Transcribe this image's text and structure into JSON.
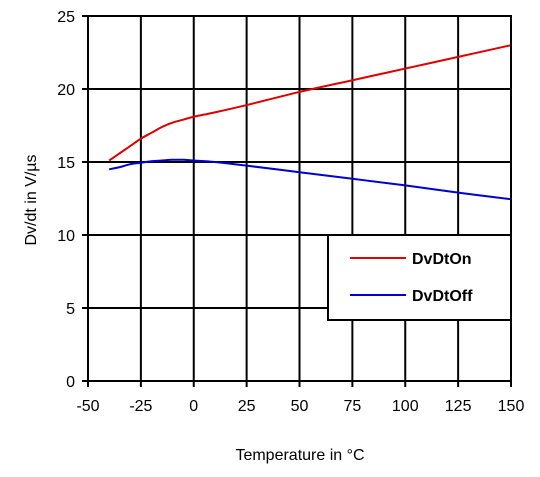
{
  "chart_data": {
    "type": "line",
    "title": "",
    "xlabel": "Temperature in °C",
    "ylabel": "Dv/dt in V/µs",
    "xlim": [
      -50,
      150
    ],
    "ylim": [
      0,
      25
    ],
    "xticks": [
      -50,
      -25,
      0,
      25,
      50,
      75,
      100,
      125,
      150
    ],
    "yticks": [
      0,
      5,
      10,
      15,
      20,
      25
    ],
    "xtick_labels": [
      "-50",
      "-25",
      "0",
      "25",
      "50",
      "75",
      "100",
      "125",
      "150"
    ],
    "ytick_labels": [
      "0",
      "5",
      "10",
      "15",
      "20",
      "25"
    ],
    "grid": true,
    "legend_position": "right-middle",
    "series": [
      {
        "name": "DvDtOn",
        "color": "#e00000",
        "x": [
          -40,
          -35,
          -30,
          -25,
          -20,
          -15,
          -10,
          -5,
          0,
          10,
          25,
          50,
          75,
          100,
          125,
          150
        ],
        "y": [
          15.1,
          15.6,
          16.1,
          16.6,
          17.0,
          17.4,
          17.7,
          17.9,
          18.1,
          18.4,
          18.9,
          19.8,
          20.6,
          21.4,
          22.2,
          23.0
        ]
      },
      {
        "name": "DvDtOff",
        "color": "#0000d0",
        "x": [
          -40,
          -35,
          -30,
          -25,
          -20,
          -15,
          -10,
          -5,
          0,
          10,
          25,
          50,
          75,
          100,
          125,
          150
        ],
        "y": [
          14.5,
          14.65,
          14.85,
          14.95,
          15.05,
          15.1,
          15.15,
          15.15,
          15.1,
          15.0,
          14.75,
          14.3,
          13.85,
          13.4,
          12.9,
          12.45
        ]
      }
    ]
  }
}
